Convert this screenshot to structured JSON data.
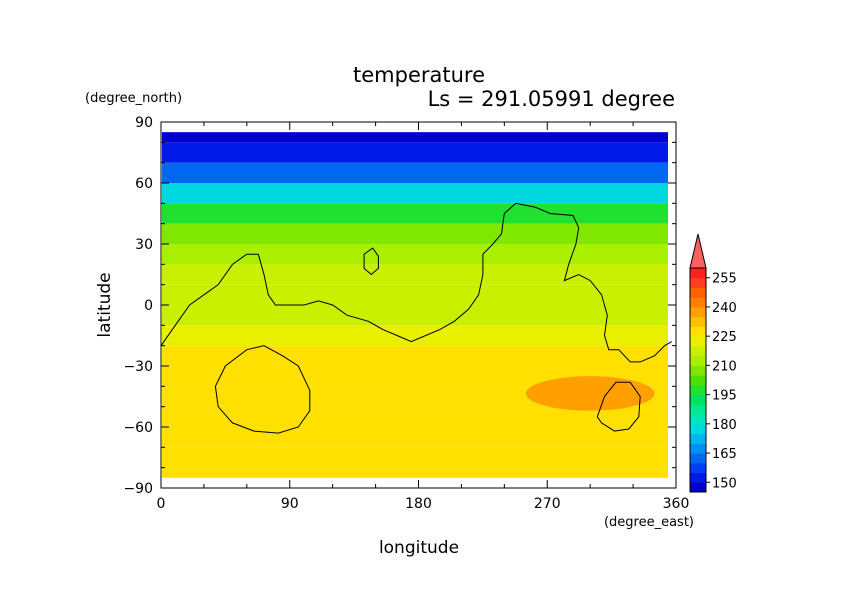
{
  "chart_data": {
    "type": "heatmap",
    "title": "temperature",
    "subtitle": "Ls = 291.05991 degree",
    "xlabel": "longitude",
    "ylabel": "latitude",
    "x_unit": "(degree_east)",
    "y_unit": "(degree_north)",
    "xlim": [
      0,
      360
    ],
    "ylim": [
      -90,
      90
    ],
    "x_ticks": [
      "0",
      "90",
      "180",
      "270",
      "360"
    ],
    "y_ticks": [
      "90",
      "60",
      "30",
      "0",
      "−30",
      "−60",
      "−90"
    ],
    "x_tick_values": [
      0,
      90,
      180,
      270,
      360
    ],
    "y_tick_values": [
      90,
      60,
      30,
      0,
      -30,
      -60,
      -90
    ],
    "colorbar": {
      "levels": [
        145,
        150,
        155,
        160,
        165,
        170,
        175,
        180,
        185,
        190,
        195,
        200,
        205,
        210,
        215,
        220,
        225,
        230,
        235,
        240,
        245,
        250,
        255,
        260
      ],
      "colors": [
        "#0000cd",
        "#0018e8",
        "#0040f0",
        "#0068f0",
        "#0090f0",
        "#00b8f0",
        "#00d8e0",
        "#00e8b8",
        "#00e890",
        "#00e060",
        "#20e030",
        "#50e000",
        "#80e800",
        "#a8f000",
        "#c8f000",
        "#e8f000",
        "#ffe000",
        "#ffc000",
        "#ffa000",
        "#ff8000",
        "#ff6000",
        "#ff4020",
        "#ff2020",
        "#ff6060"
      ],
      "labels": [
        "150",
        "165",
        "180",
        "195",
        "210",
        "225",
        "240",
        "255"
      ],
      "label_values": [
        150,
        165,
        180,
        195,
        210,
        225,
        240,
        255
      ],
      "extend": "max"
    },
    "lat_profile": [
      {
        "lat": 85,
        "t": 146
      },
      {
        "lat": 75,
        "t": 150
      },
      {
        "lat": 65,
        "t": 162
      },
      {
        "lat": 55,
        "t": 178
      },
      {
        "lat": 45,
        "t": 195
      },
      {
        "lat": 35,
        "t": 205
      },
      {
        "lat": 25,
        "t": 212
      },
      {
        "lat": 15,
        "t": 216
      },
      {
        "lat": 5,
        "t": 217
      },
      {
        "lat": -5,
        "t": 219
      },
      {
        "lat": -15,
        "t": 221
      },
      {
        "lat": -25,
        "t": 226
      },
      {
        "lat": -35,
        "t": 229
      },
      {
        "lat": -45,
        "t": 227
      },
      {
        "lat": -55,
        "t": 225
      },
      {
        "lat": -65,
        "t": 225
      },
      {
        "lat": -75,
        "t": 227
      },
      {
        "lat": -85,
        "t": 228
      }
    ],
    "data_lat_range": [
      -85,
      85
    ],
    "contours": [
      {
        "name": "topography-contour-main",
        "points": [
          [
            0,
            -20
          ],
          [
            10,
            -10
          ],
          [
            20,
            0
          ],
          [
            30,
            5
          ],
          [
            40,
            10
          ],
          [
            50,
            20
          ],
          [
            60,
            25
          ],
          [
            68,
            25
          ],
          [
            72,
            15
          ],
          [
            75,
            5
          ],
          [
            80,
            0
          ],
          [
            100,
            0
          ],
          [
            110,
            2
          ],
          [
            120,
            0
          ],
          [
            130,
            -5
          ],
          [
            145,
            -8
          ],
          [
            155,
            -12
          ],
          [
            165,
            -15
          ],
          [
            175,
            -18
          ],
          [
            185,
            -15
          ],
          [
            195,
            -12
          ],
          [
            205,
            -8
          ],
          [
            215,
            -2
          ],
          [
            222,
            5
          ],
          [
            225,
            15
          ],
          [
            225,
            25
          ],
          [
            232,
            30
          ],
          [
            238,
            35
          ],
          [
            240,
            45
          ],
          [
            248,
            50
          ],
          [
            262,
            48
          ],
          [
            272,
            45
          ],
          [
            288,
            44
          ],
          [
            292,
            38
          ],
          [
            290,
            30
          ],
          [
            285,
            20
          ],
          [
            282,
            12
          ],
          [
            292,
            15
          ],
          [
            300,
            12
          ],
          [
            308,
            5
          ],
          [
            312,
            -5
          ],
          [
            310,
            -15
          ],
          [
            313,
            -22
          ],
          [
            320,
            -22
          ],
          [
            328,
            -28
          ],
          [
            335,
            -28
          ],
          [
            345,
            -25
          ],
          [
            352,
            -20
          ],
          [
            357,
            -18
          ]
        ]
      },
      {
        "name": "topography-contour-hole",
        "points": [
          [
            142,
            20
          ],
          [
            142,
            25
          ],
          [
            148,
            28
          ],
          [
            152,
            24
          ],
          [
            152,
            18
          ],
          [
            147,
            15
          ],
          [
            142,
            18
          ],
          [
            142,
            20
          ]
        ]
      },
      {
        "name": "topography-contour-south-west",
        "points": [
          [
            38,
            -40
          ],
          [
            45,
            -30
          ],
          [
            60,
            -22
          ],
          [
            72,
            -20
          ],
          [
            85,
            -25
          ],
          [
            96,
            -30
          ],
          [
            104,
            -42
          ],
          [
            104,
            -52
          ],
          [
            96,
            -60
          ],
          [
            82,
            -63
          ],
          [
            65,
            -62
          ],
          [
            50,
            -58
          ],
          [
            40,
            -50
          ],
          [
            38,
            -40
          ]
        ]
      },
      {
        "name": "topography-contour-south-east",
        "points": [
          [
            305,
            -55
          ],
          [
            310,
            -45
          ],
          [
            318,
            -38
          ],
          [
            328,
            -38
          ],
          [
            335,
            -45
          ],
          [
            334,
            -55
          ],
          [
            327,
            -61
          ],
          [
            317,
            -62
          ],
          [
            308,
            -58
          ],
          [
            305,
            -55
          ]
        ]
      }
    ],
    "warm_patch": {
      "name": "warm-region",
      "lon_range": [
        255,
        345
      ],
      "lat_range": [
        -35,
        -52
      ],
      "t": 235
    }
  }
}
